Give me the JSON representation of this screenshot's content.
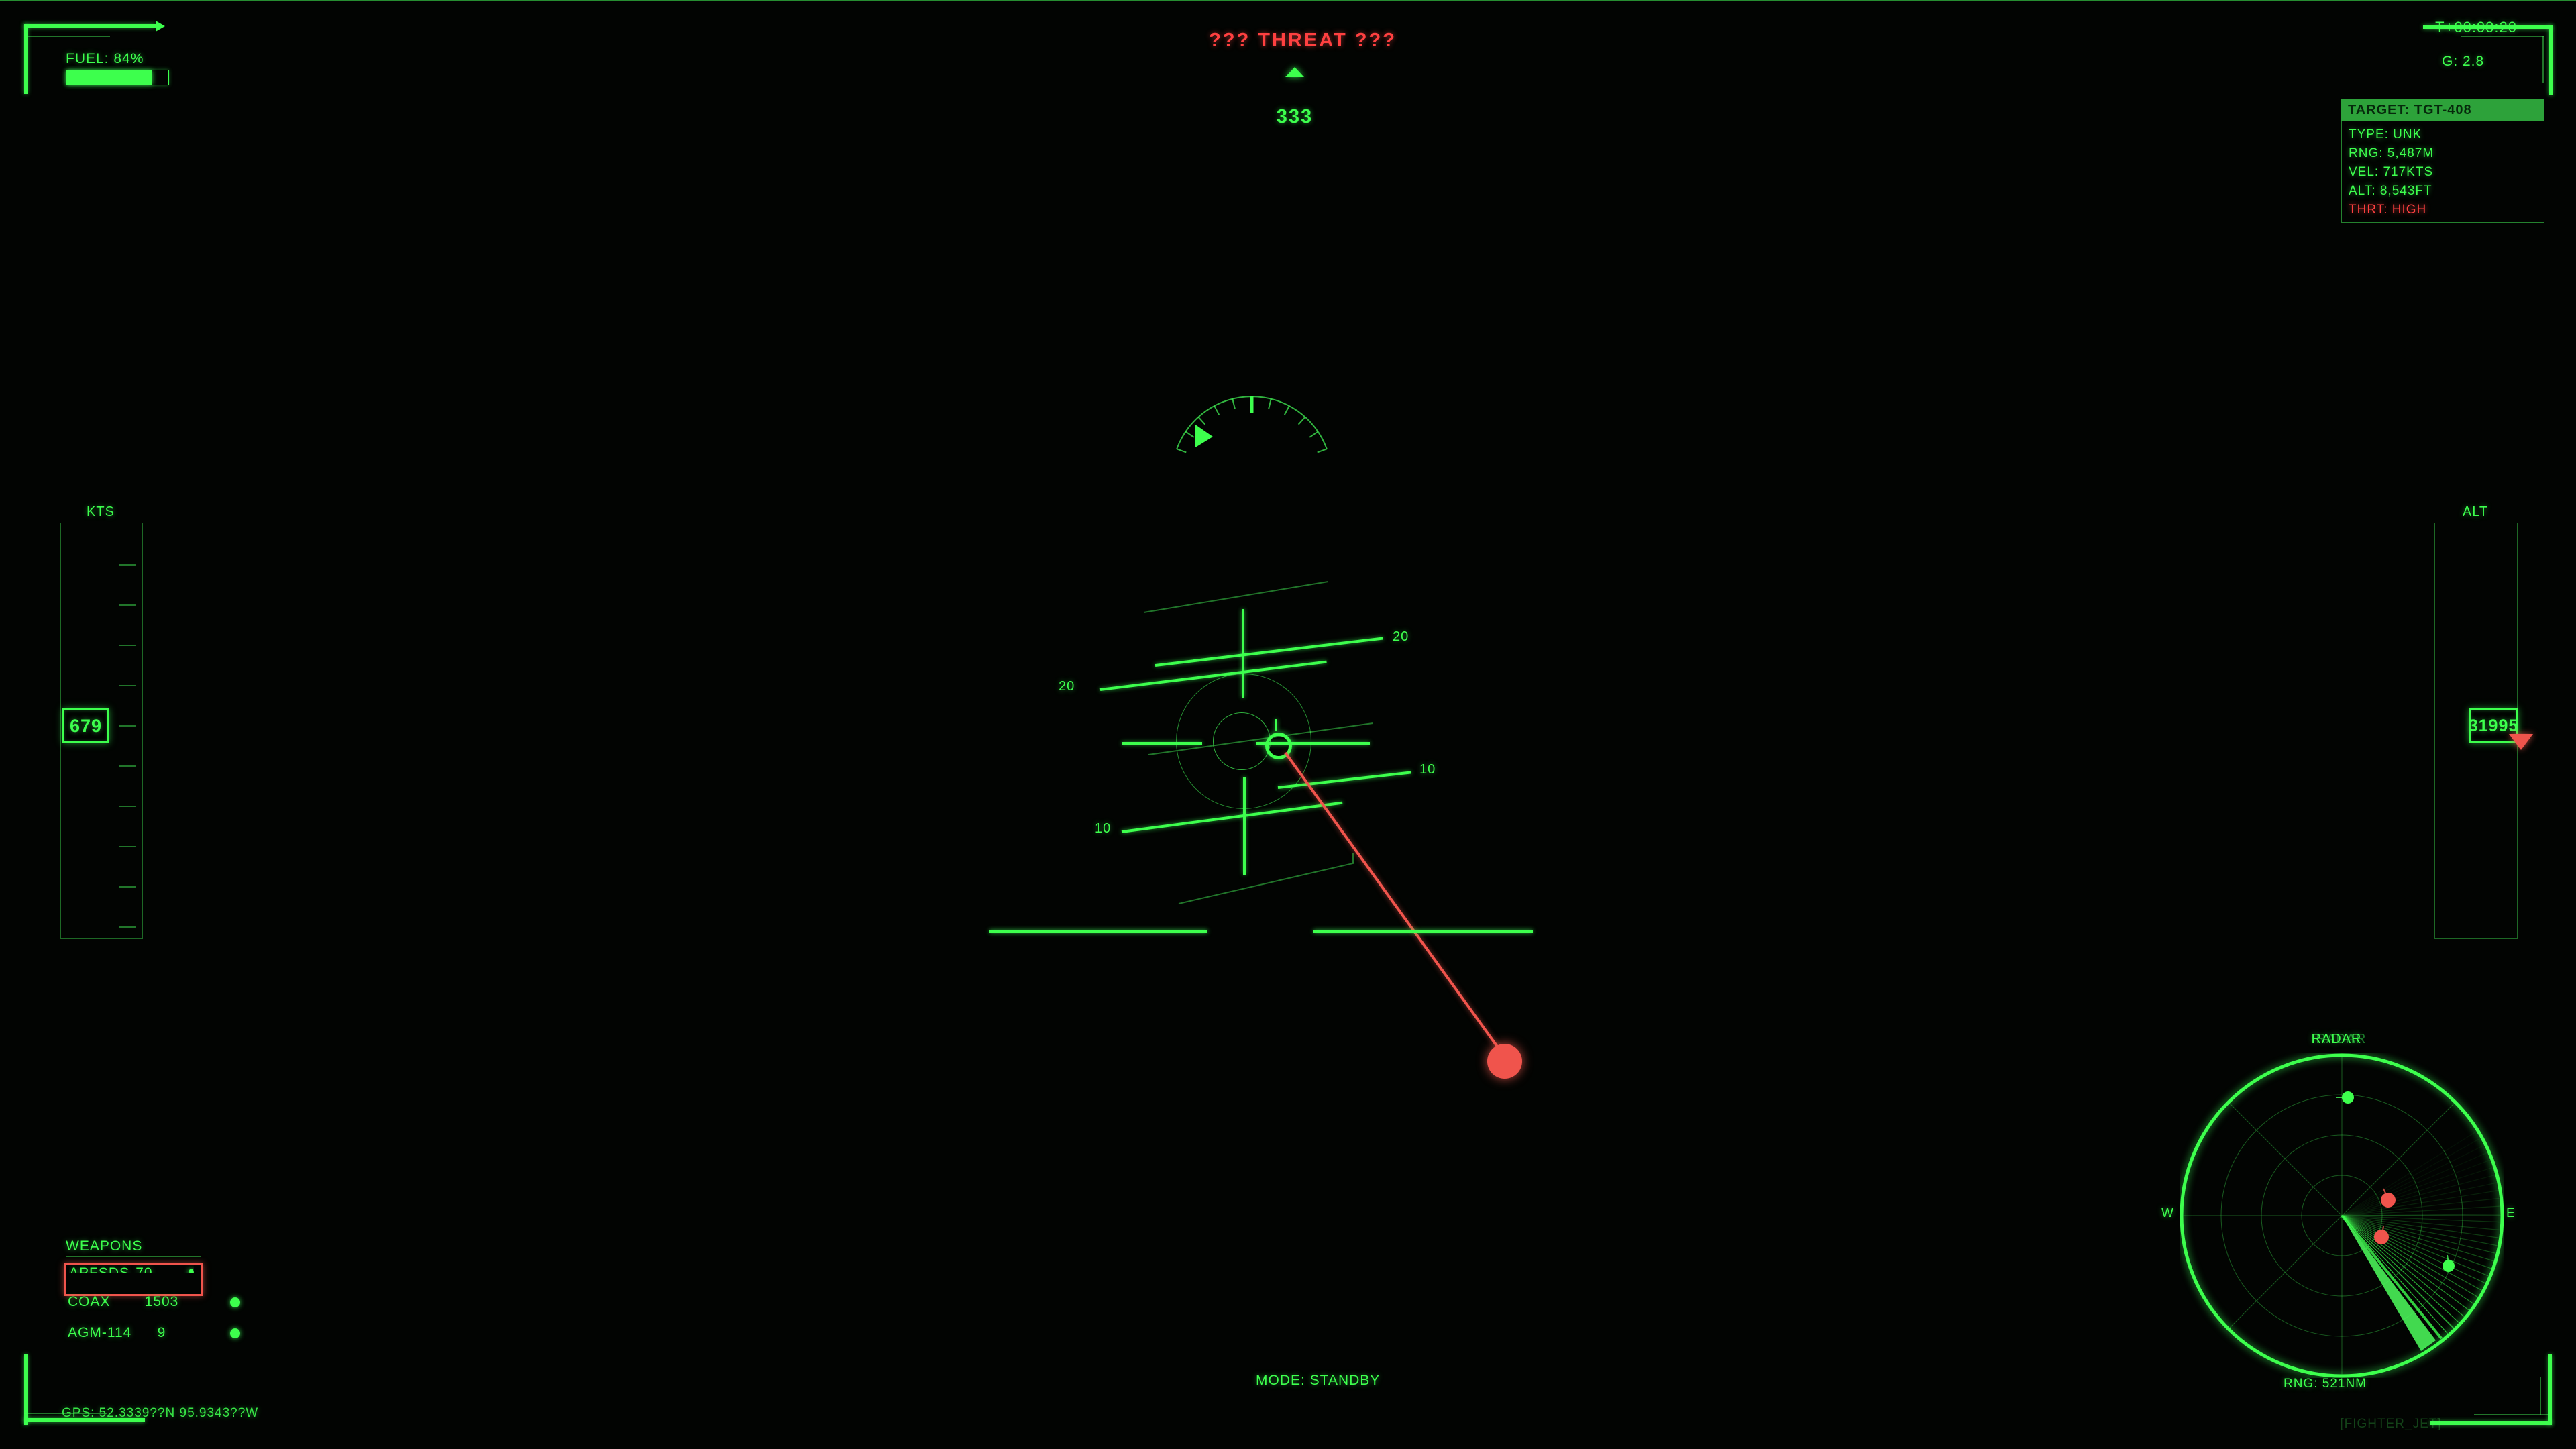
{
  "colors": {
    "green": "#3dff4d",
    "dim_green": "rgba(70,255,90,0.45)",
    "red": "#ff4040",
    "salmon": "#f0544c",
    "header_green": "#2da23a"
  },
  "top": {
    "fuel_label": "FUEL: 84%",
    "fuel_percent": 84,
    "threat_warning": "??? THREAT ???",
    "heading": "333",
    "mission_time": "T+00:00:20",
    "g_readout": "G: 2.8"
  },
  "target_panel": {
    "header": "TARGET: TGT-408",
    "rows": [
      "TYPE: UNK",
      "RNG:  5,487M",
      "VEL:  717KTS",
      "ALT:  8,543FT",
      "THRT: HIGH"
    ]
  },
  "speed_tape": {
    "label": "KTS",
    "value": "679"
  },
  "alt_tape": {
    "label": "ALT",
    "value": "31995"
  },
  "pitch_ladder": {
    "labels": [
      "20",
      "20",
      "10",
      "10"
    ]
  },
  "weapons": {
    "title": "WEAPONS",
    "items": [
      {
        "name": "APFSDS",
        "count": "70"
      },
      {
        "name": "COAX",
        "count": "1503"
      },
      {
        "name": "AGM-114",
        "count": "9"
      }
    ]
  },
  "status": {
    "mode": "MODE: STANDBY",
    "gps": "GPS: 52.3339??N 95.9343??W"
  },
  "radar": {
    "title": "RADAR",
    "range": "RNG: 521NM",
    "west": "W",
    "east": "E",
    "watermark": "[FIGHTER_JET]"
  }
}
